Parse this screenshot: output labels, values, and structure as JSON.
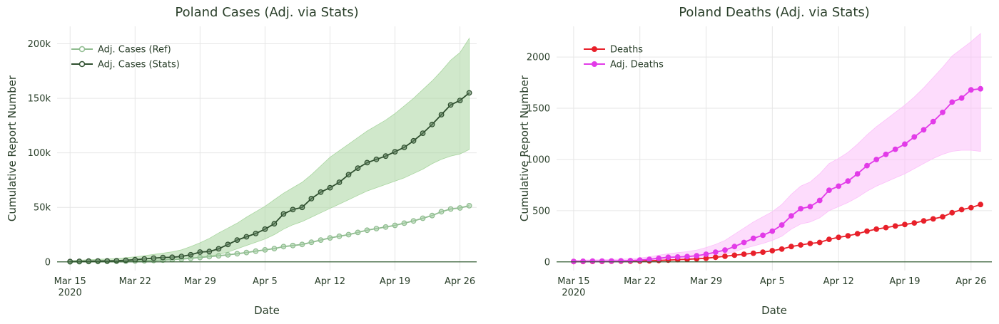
{
  "chart_data": [
    {
      "type": "line",
      "title": "Poland Cases (Adj. via Stats)",
      "xlabel": "Date",
      "ylabel": "Cumulative Report Number",
      "x_start": "2020-03-15",
      "x_range_days": [
        -1.4,
        43.8
      ],
      "ylim": [
        -8000,
        216000
      ],
      "x_ticks": [
        {
          "day": 0,
          "label": "Mar 15",
          "sublabel": "2020"
        },
        {
          "day": 7,
          "label": "Mar 22"
        },
        {
          "day": 14,
          "label": "Mar 29"
        },
        {
          "day": 21,
          "label": "Apr 5"
        },
        {
          "day": 28,
          "label": "Apr 12"
        },
        {
          "day": 35,
          "label": "Apr 19"
        },
        {
          "day": 42,
          "label": "Apr 26"
        }
      ],
      "y_ticks": [
        {
          "value": 0,
          "label": "0"
        },
        {
          "value": 50000,
          "label": "50k"
        },
        {
          "value": 100000,
          "label": "100k"
        },
        {
          "value": 150000,
          "label": "150k"
        },
        {
          "value": 200000,
          "label": "200k"
        }
      ],
      "grid": true,
      "legend_position": "top-left",
      "series": [
        {
          "name": "Adj. Cases (Ref)",
          "color": "#8fbc8f",
          "marker": "open-circle",
          "values": [
            0,
            100,
            200,
            300,
            400,
            500,
            700,
            800,
            1000,
            1300,
            1600,
            2100,
            2600,
            3300,
            4000,
            4800,
            5600,
            6400,
            7500,
            8600,
            9800,
            11000,
            12200,
            14000,
            15000,
            16000,
            18000,
            20000,
            22000,
            23500,
            25000,
            27000,
            29000,
            30500,
            32000,
            33500,
            35500,
            37500,
            40000,
            42500,
            46000,
            48500,
            49500,
            51500
          ]
        },
        {
          "name": "Adj. Cases (Stats)",
          "color": "#2f4f2f",
          "marker": "open-circle",
          "band_color": "#a9d6a0",
          "values": [
            300,
            500,
            700,
            800,
            900,
            1100,
            1500,
            2000,
            2700,
            3400,
            4000,
            4200,
            5000,
            6500,
            9000,
            9500,
            12000,
            16000,
            20000,
            23000,
            26000,
            30000,
            35000,
            44000,
            48000,
            50000,
            58000,
            64000,
            68000,
            73000,
            80000,
            86000,
            91000,
            94000,
            97000,
            101000,
            105000,
            111000,
            118000,
            126000,
            135000,
            144000,
            148000,
            155000
          ],
          "band_low": [
            0,
            0,
            0,
            0,
            0,
            0,
            0,
            500,
            900,
            1300,
            1800,
            2100,
            2700,
            3500,
            4200,
            5200,
            6800,
            9000,
            12000,
            15000,
            18000,
            21000,
            25000,
            30000,
            34000,
            37000,
            41000,
            45000,
            49000,
            53000,
            57000,
            61000,
            65000,
            68000,
            71000,
            74000,
            77000,
            81000,
            85000,
            90000,
            94000,
            97000,
            99000,
            103000
          ],
          "band_high": [
            1000,
            1500,
            2000,
            2300,
            2600,
            3000,
            3800,
            4600,
            5600,
            6800,
            8000,
            9200,
            11000,
            14000,
            17500,
            21500,
            26500,
            31000,
            35500,
            41000,
            46000,
            51000,
            57000,
            63000,
            68000,
            73000,
            80000,
            88000,
            96000,
            102000,
            108000,
            114000,
            120000,
            125000,
            130000,
            136000,
            143000,
            150000,
            158000,
            166000,
            175000,
            185000,
            192000,
            205000
          ]
        }
      ]
    },
    {
      "type": "line",
      "title": "Poland Deaths (Adj. via Stats)",
      "xlabel": "Date",
      "ylabel": "Cumulative Report Number",
      "x_start": "2020-03-15",
      "x_range_days": [
        -1.8,
        44.2
      ],
      "ylim": [
        -85,
        2300
      ],
      "x_ticks": [
        {
          "day": 0,
          "label": "Mar 15",
          "sublabel": "2020"
        },
        {
          "day": 7,
          "label": "Mar 22"
        },
        {
          "day": 14,
          "label": "Mar 29"
        },
        {
          "day": 21,
          "label": "Apr 5"
        },
        {
          "day": 28,
          "label": "Apr 12"
        },
        {
          "day": 35,
          "label": "Apr 19"
        },
        {
          "day": 42,
          "label": "Apr 26"
        }
      ],
      "y_ticks": [
        {
          "value": 0,
          "label": "0"
        },
        {
          "value": 500,
          "label": "500"
        },
        {
          "value": 1000,
          "label": "1000"
        },
        {
          "value": 1500,
          "label": "1500"
        },
        {
          "value": 2000,
          "label": "2000"
        }
      ],
      "grid": true,
      "legend_position": "top-left",
      "series": [
        {
          "name": "Deaths",
          "color": "#e8202a",
          "marker": "filled-circle",
          "values": [
            3,
            4,
            5,
            5,
            6,
            7,
            7,
            8,
            10,
            14,
            17,
            22,
            25,
            30,
            35,
            45,
            55,
            65,
            75,
            85,
            95,
            110,
            125,
            150,
            165,
            180,
            190,
            220,
            240,
            255,
            275,
            300,
            320,
            335,
            350,
            365,
            380,
            400,
            420,
            440,
            480,
            510,
            530,
            560
          ]
        },
        {
          "name": "Adj. Deaths",
          "color": "#e23be8",
          "marker": "filled-circle",
          "band_color": "#fcc0fa",
          "values": [
            5,
            6,
            8,
            8,
            9,
            10,
            12,
            18,
            25,
            35,
            45,
            48,
            52,
            60,
            75,
            95,
            115,
            150,
            190,
            230,
            260,
            300,
            360,
            450,
            520,
            540,
            600,
            700,
            740,
            790,
            860,
            940,
            1000,
            1050,
            1100,
            1150,
            1220,
            1290,
            1370,
            1460,
            1560,
            1600,
            1680,
            1690
          ],
          "band_low": [
            0,
            0,
            0,
            0,
            0,
            0,
            0,
            5,
            10,
            18,
            25,
            28,
            32,
            40,
            50,
            60,
            75,
            100,
            130,
            155,
            180,
            210,
            250,
            320,
            370,
            390,
            430,
            500,
            540,
            580,
            630,
            690,
            740,
            780,
            820,
            860,
            910,
            960,
            1010,
            1050,
            1080,
            1090,
            1090,
            1080
          ],
          "band_high": [
            15,
            18,
            20,
            22,
            24,
            26,
            30,
            38,
            50,
            65,
            80,
            90,
            100,
            115,
            140,
            170,
            210,
            270,
            330,
            390,
            440,
            490,
            560,
            660,
            740,
            780,
            860,
            960,
            1010,
            1070,
            1150,
            1240,
            1320,
            1390,
            1460,
            1530,
            1610,
            1700,
            1800,
            1900,
            2010,
            2080,
            2150,
            2230
          ]
        }
      ]
    }
  ]
}
